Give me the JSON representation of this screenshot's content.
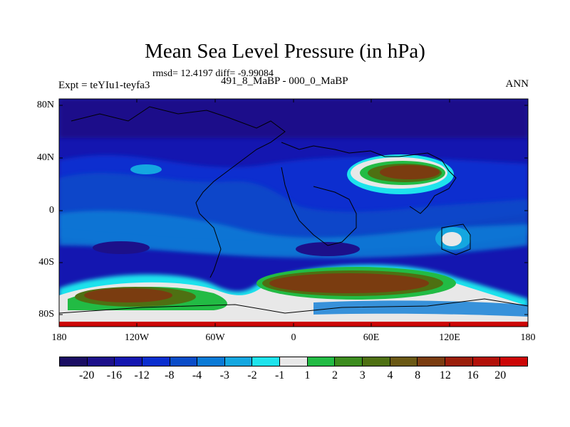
{
  "title": "Mean Sea Level Pressure (in hPa)",
  "stats": "rmsd= 12.4197 diff= -9.99084",
  "subtitle_left": "Expt = teYIu1-teyfa3",
  "subtitle_center": "491_8_MaBP - 000_0_MaBP",
  "subtitle_right": "ANN",
  "y_axis": [
    "80N",
    "40N",
    "0",
    "40S",
    "80S"
  ],
  "x_axis": [
    "180",
    "120W",
    "60W",
    "0",
    "60E",
    "120E",
    "180"
  ],
  "colorbar": {
    "labels": [
      "-20",
      "-16",
      "-12",
      "-8",
      "-4",
      "-3",
      "-2",
      "-1",
      "1",
      "2",
      "3",
      "4",
      "8",
      "12",
      "16",
      "20"
    ],
    "colors": [
      "#1a0d63",
      "#1c108a",
      "#1416b0",
      "#0a2ecf",
      "#0a4cc8",
      "#0a7ad6",
      "#14a7e0",
      "#1ee3ec",
      "#e8e8e8",
      "#22bb44",
      "#3c8c1e",
      "#4e7012",
      "#6a5814",
      "#7a3c10",
      "#9a1e0a",
      "#b21008",
      "#cc0606"
    ]
  },
  "colors": {
    "ocean_base": "#1416b0",
    "deep_low": "#1c108a",
    "mid_low": "#0a4cc8",
    "light_low": "#0a7ad6",
    "cyan": "#1ee3ec",
    "neutral": "#e8e8e8",
    "green": "#22bb44",
    "brown": "#7a3c10"
  }
}
